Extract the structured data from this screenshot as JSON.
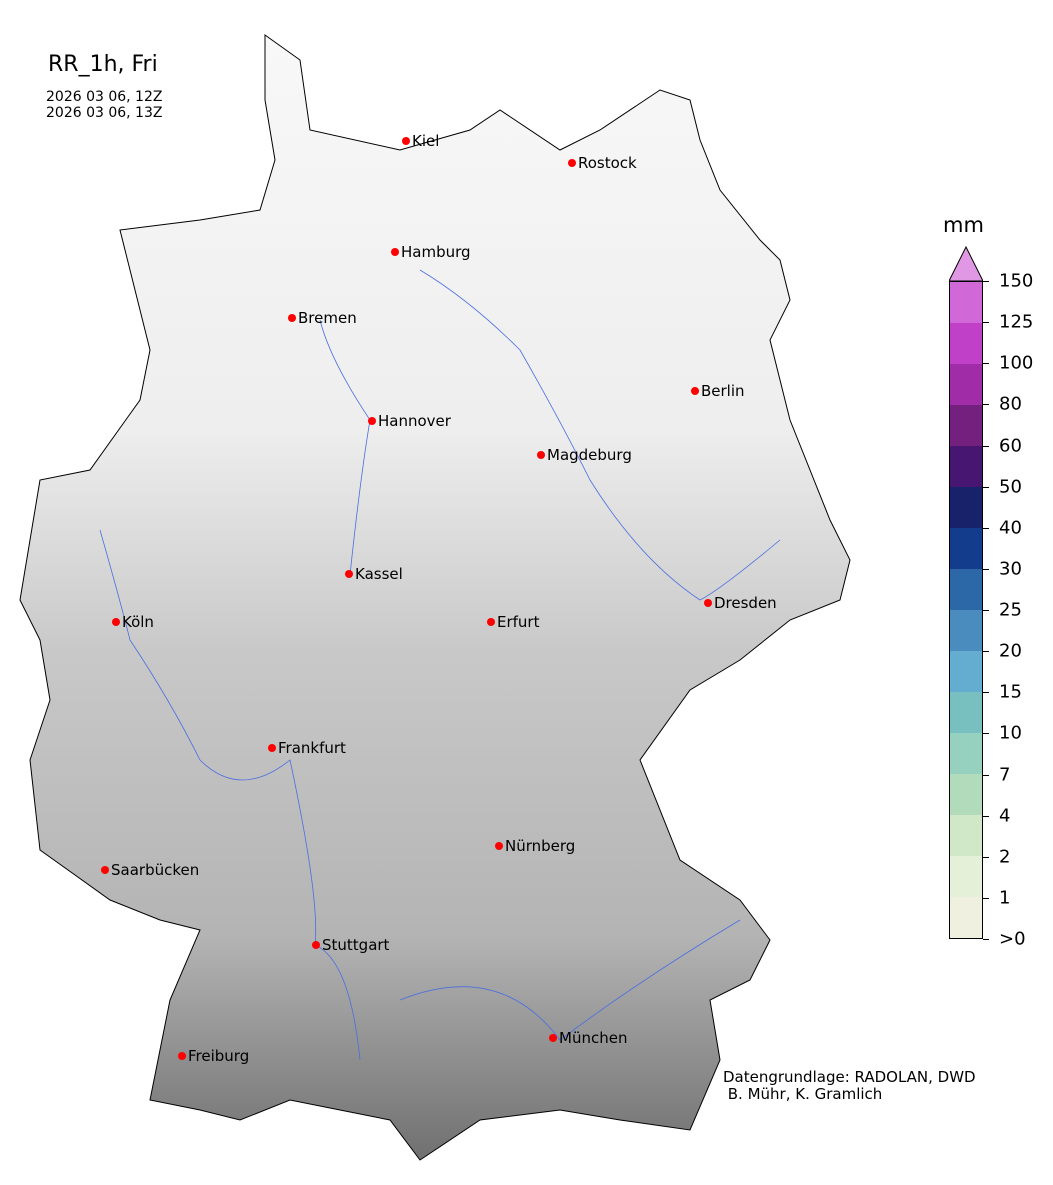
{
  "title": "RR_1h, Fri",
  "time_start": "2026 03 06, 12Z",
  "time_end": "2026 03 06, 13Z",
  "cities": [
    {
      "name": "Kiel"
    },
    {
      "name": "Rostock"
    },
    {
      "name": "Hamburg"
    },
    {
      "name": "Bremen"
    },
    {
      "name": "Berlin"
    },
    {
      "name": "Hannover"
    },
    {
      "name": "Magdeburg"
    },
    {
      "name": "Kassel"
    },
    {
      "name": "Köln"
    },
    {
      "name": "Erfurt"
    },
    {
      "name": "Dresden"
    },
    {
      "name": "Frankfurt"
    },
    {
      "name": "Nürnberg"
    },
    {
      "name": "Saarbücken"
    },
    {
      "name": "Stuttgart"
    },
    {
      "name": "München"
    },
    {
      "name": "Freiburg"
    }
  ],
  "city_marker_color": "#ff0000",
  "river_color": "#4a6ee0",
  "colorbar": {
    "unit": "mm",
    "ticks": [
      ">0",
      "1",
      "2",
      "4",
      "7",
      "10",
      "15",
      "20",
      "25",
      "30",
      "40",
      "50",
      "60",
      "80",
      "100",
      "125",
      "150"
    ],
    "colors": [
      "#f0f0e0",
      "#e4f0d8",
      "#d0e8c8",
      "#b2dbbc",
      "#96d1c0",
      "#78c0c0",
      "#64acd0",
      "#4a8cbe",
      "#2c68a8",
      "#143c8c",
      "#18226a",
      "#461670",
      "#74207e",
      "#a02ca8",
      "#c040c8",
      "#d068d8"
    ],
    "extend_color": "#e098e4"
  },
  "credit": "Datengrundlage: RADOLAN, DWD\n B. Mühr, K. Gramlich"
}
